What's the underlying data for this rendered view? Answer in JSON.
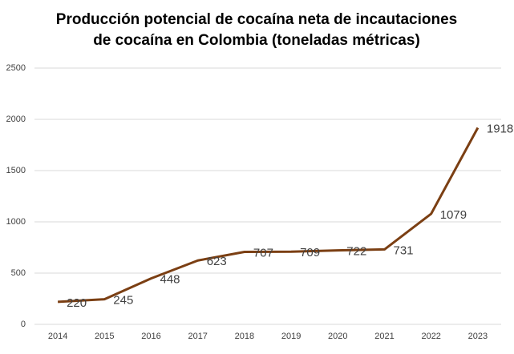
{
  "chart_data": {
    "type": "line",
    "title": [
      "Producción potencial de cocaína neta de incautaciones",
      "de cocaína en Colombia (toneladas métricas)"
    ],
    "categories": [
      "2014",
      "2015",
      "2016",
      "2017",
      "2018",
      "2019",
      "2020",
      "2021",
      "2022",
      "2023"
    ],
    "values": [
      220,
      245,
      448,
      623,
      707,
      709,
      722,
      731,
      1079,
      1918
    ],
    "color": "#7b3f13",
    "ylim": [
      0,
      2500
    ],
    "yticks": [
      0,
      500,
      1000,
      1500,
      2000,
      2500
    ],
    "grid": true
  }
}
